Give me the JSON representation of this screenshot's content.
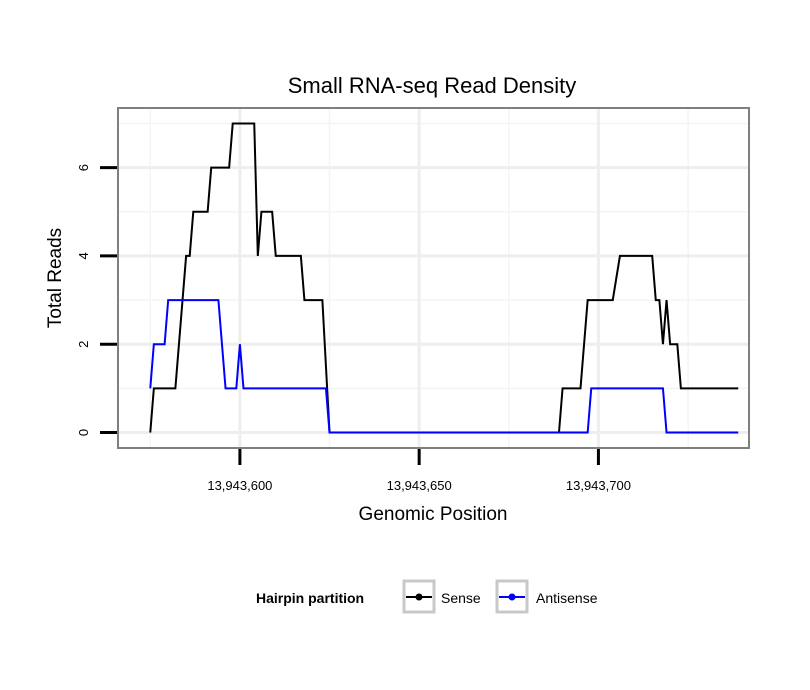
{
  "chart_data": {
    "type": "line",
    "title": "Small RNA-seq Read Density",
    "xlabel": "Genomic Position",
    "ylabel": "Total Reads",
    "xlim": [
      13943566,
      13943742
    ],
    "ylim": [
      -0.35,
      7.35
    ],
    "x_ticks": [
      13943600,
      13943650,
      13943700
    ],
    "x_tick_labels": [
      "13,943,600",
      "13,943,650",
      "13,943,700"
    ],
    "y_ticks": [
      0,
      2,
      4,
      6
    ],
    "y_tick_labels": [
      "0",
      "2",
      "4",
      "6"
    ],
    "legend": {
      "title": "Hairpin partition",
      "position": "bottom"
    },
    "series": [
      {
        "name": "Sense",
        "color": "#000000",
        "points": [
          [
            13943575,
            0
          ],
          [
            13943576,
            1
          ],
          [
            13943582,
            1
          ],
          [
            13943585,
            4
          ],
          [
            13943586,
            4
          ],
          [
            13943587,
            5
          ],
          [
            13943591,
            5
          ],
          [
            13943592,
            6
          ],
          [
            13943597,
            6
          ],
          [
            13943598,
            7
          ],
          [
            13943604,
            7
          ],
          [
            13943605,
            4
          ],
          [
            13943606,
            5
          ],
          [
            13943609,
            5
          ],
          [
            13943610,
            4
          ],
          [
            13943617,
            4
          ],
          [
            13943618,
            3
          ],
          [
            13943623,
            3
          ],
          [
            13943625,
            0
          ],
          [
            13943689,
            0
          ],
          [
            13943690,
            1
          ],
          [
            13943695,
            1
          ],
          [
            13943697,
            3
          ],
          [
            13943704,
            3
          ],
          [
            13943706,
            4
          ],
          [
            13943715,
            4
          ],
          [
            13943716,
            3
          ],
          [
            13943717,
            3
          ],
          [
            13943718,
            2
          ],
          [
            13943719,
            3
          ],
          [
            13943720,
            2
          ],
          [
            13943722,
            2
          ],
          [
            13943723,
            1
          ],
          [
            13943739,
            1
          ]
        ]
      },
      {
        "name": "Antisense",
        "color": "#0000ff",
        "points": [
          [
            13943575,
            1
          ],
          [
            13943576,
            2
          ],
          [
            13943579,
            2
          ],
          [
            13943580,
            3
          ],
          [
            13943594,
            3
          ],
          [
            13943596,
            1
          ],
          [
            13943599,
            1
          ],
          [
            13943600,
            2
          ],
          [
            13943601,
            1
          ],
          [
            13943624,
            1
          ],
          [
            13943625,
            0
          ],
          [
            13943697,
            0
          ],
          [
            13943698,
            1
          ],
          [
            13943718,
            1
          ],
          [
            13943719,
            0
          ],
          [
            13943739,
            0
          ]
        ]
      }
    ]
  }
}
